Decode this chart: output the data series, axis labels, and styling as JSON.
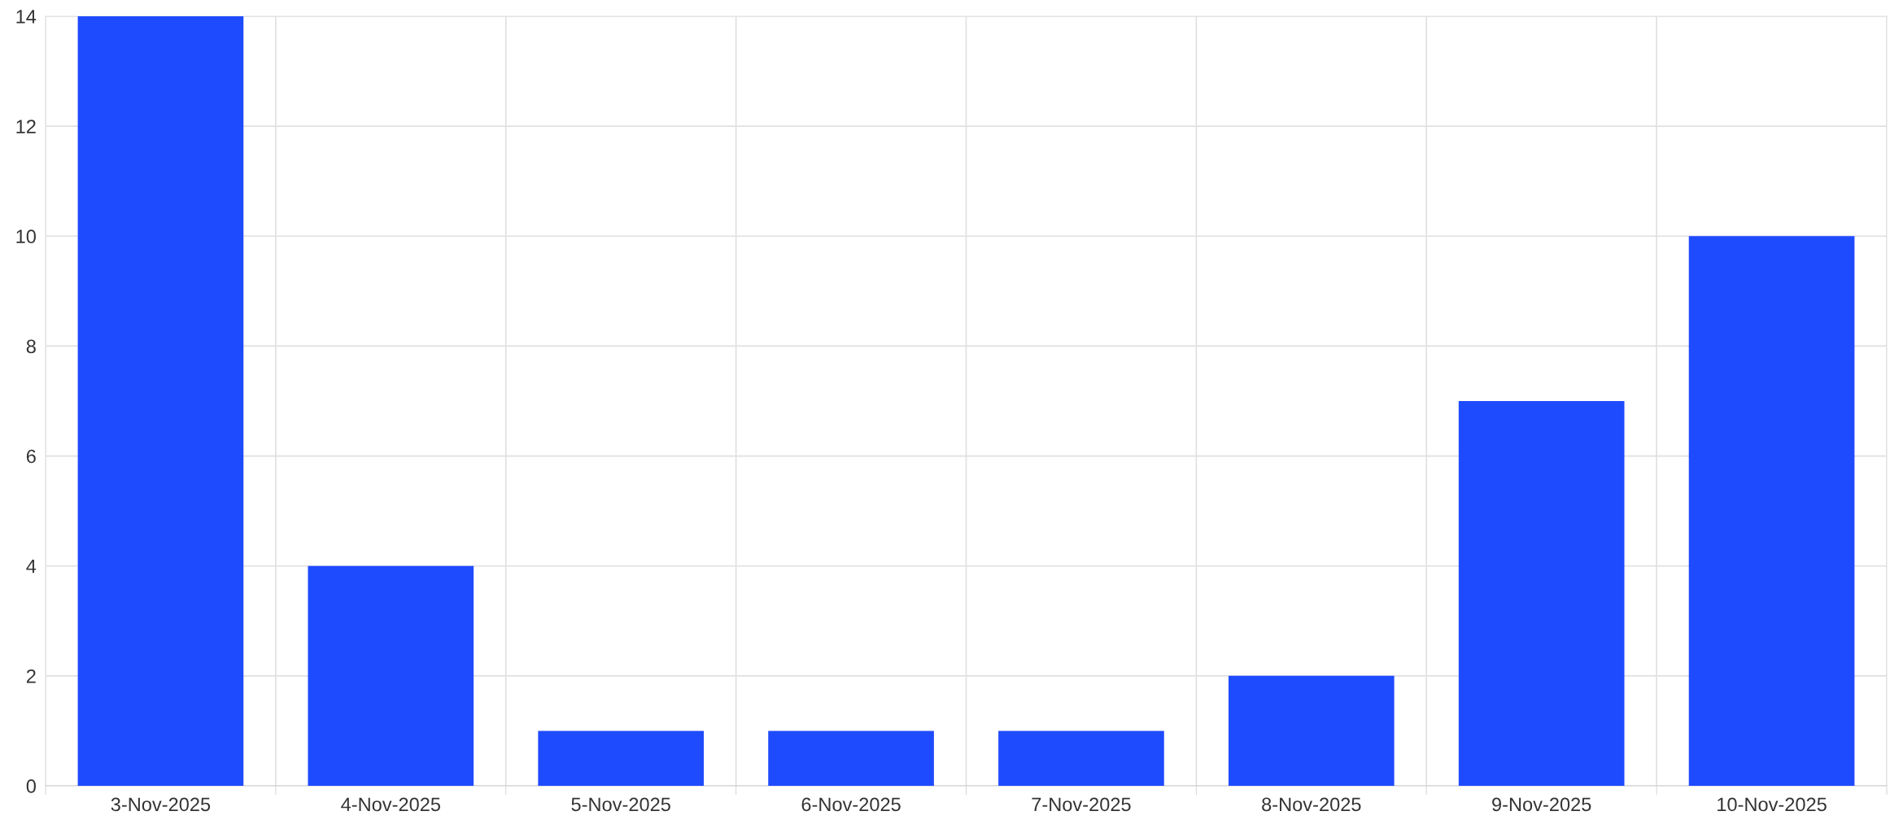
{
  "chart_data": {
    "type": "bar",
    "categories": [
      "3-Nov-2025",
      "4-Nov-2025",
      "5-Nov-2025",
      "6-Nov-2025",
      "7-Nov-2025",
      "8-Nov-2025",
      "9-Nov-2025",
      "10-Nov-2025"
    ],
    "values": [
      14,
      4,
      1,
      1,
      1,
      2,
      7,
      10
    ],
    "color": "#1f4bff",
    "ylim": [
      0,
      14
    ],
    "yticks": [
      0,
      2,
      4,
      6,
      8,
      10,
      12,
      14
    ],
    "grid": true
  }
}
